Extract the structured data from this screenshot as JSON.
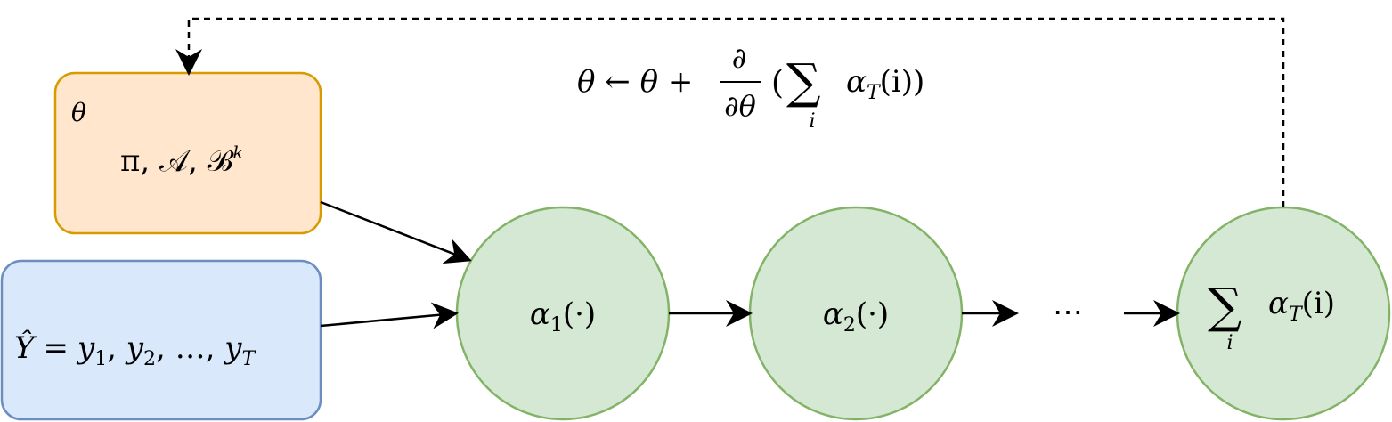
{
  "theta_box": {
    "label": "θ",
    "content": "π, 𝒜, ℬ",
    "content_sup": "k",
    "fill": "#ffe6cc",
    "stroke": "#d79b00"
  },
  "obs_box": {
    "label": "Ŷ = y",
    "seq": [
      {
        "base": "y",
        "sub": "1"
      },
      {
        "base": "y",
        "sub": "2"
      },
      {
        "base": "…",
        "sub": ""
      },
      {
        "base": "y",
        "sub": "T"
      }
    ],
    "lhs": "Ŷ",
    "eq": "=",
    "fill": "#dae8fc",
    "stroke": "#6c8ebf"
  },
  "nodes": {
    "fill": "#d5e8d4",
    "stroke": "#82b366",
    "alpha1": {
      "base": "α",
      "sub": "1",
      "arg": "(·)"
    },
    "alpha2": {
      "base": "α",
      "sub": "2",
      "arg": "(·)"
    },
    "alphaT": {
      "sum": "∑",
      "sum_idx": "i",
      "base": "α",
      "sub": "T",
      "arg": "(i)"
    }
  },
  "ellipsis": "⋯",
  "update_rule": {
    "lhs": "θ ← θ +",
    "frac_num": "∂",
    "frac_den": "∂θ",
    "open": "(",
    "sum": "∑",
    "sum_idx": "i",
    "base": "α",
    "sub": "T",
    "arg": "(i))"
  }
}
